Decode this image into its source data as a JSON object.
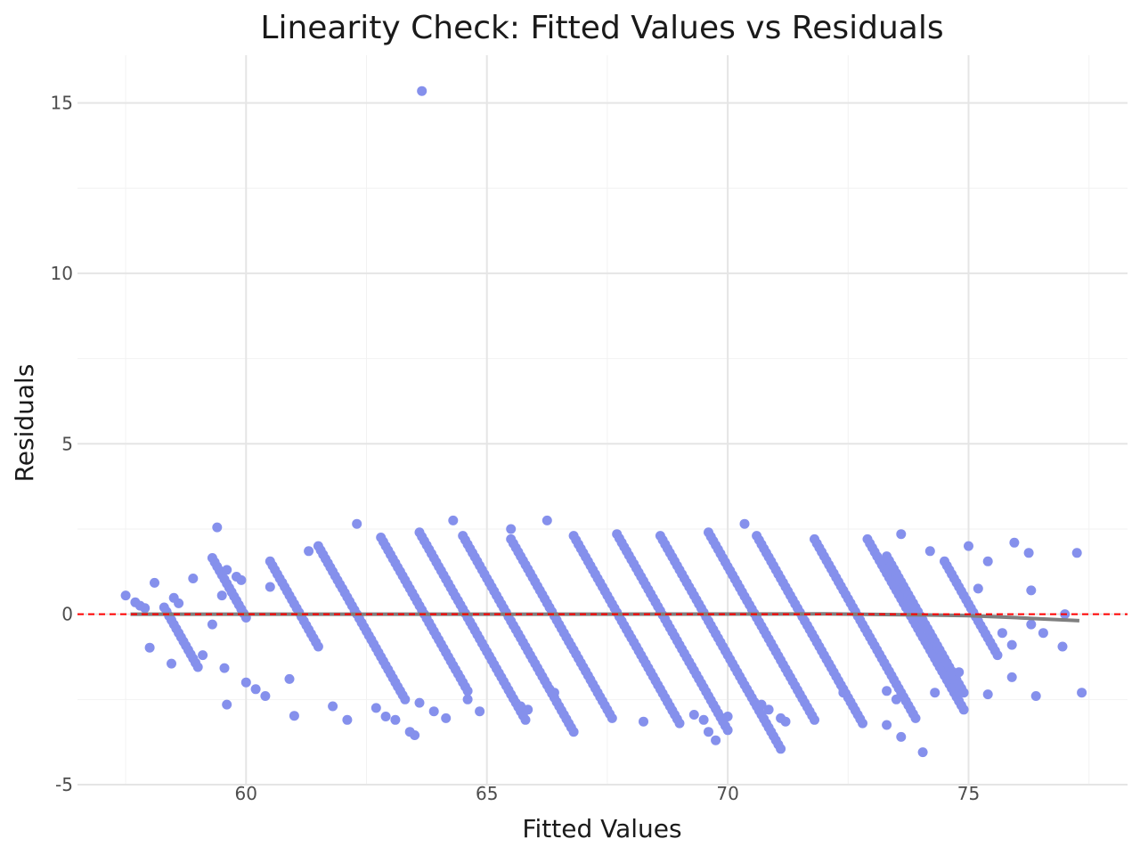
{
  "chart_data": {
    "type": "scatter",
    "title": "Linearity Check: Fitted Values vs Residuals",
    "xlabel": "Fitted Values",
    "ylabel": "Residuals",
    "xlim": [
      56.5,
      78.3
    ],
    "ylim": [
      -5.0,
      16.4
    ],
    "x_ticks": [
      60,
      65,
      70,
      75
    ],
    "x_tick_labels": [
      "60",
      "65",
      "70",
      "75"
    ],
    "y_ticks": [
      -5,
      0,
      5,
      10,
      15
    ],
    "y_tick_labels": [
      "-5",
      "0",
      "5",
      "10",
      "15"
    ],
    "grid": true,
    "point_color": "#8590ec",
    "reference_line": {
      "y": 0,
      "color": "#ff0000",
      "style": "dashed"
    },
    "trend_color": "#7f7f7f",
    "trend": [
      [
        57.6,
        0.0
      ],
      [
        66.0,
        0.0
      ],
      [
        72.0,
        0.01
      ],
      [
        74.0,
        -0.02
      ],
      [
        75.0,
        -0.04
      ],
      [
        76.0,
        -0.1
      ],
      [
        76.7,
        -0.15
      ],
      [
        77.3,
        -0.19
      ]
    ],
    "diagonal_bands": [
      {
        "a": 58.3,
        "b": 59.0,
        "y0": 0.2
      },
      {
        "a": 59.3,
        "b": 60.0,
        "y0": 1.65
      },
      {
        "a": 60.5,
        "b": 61.5,
        "y0": 1.55
      },
      {
        "a": 61.5,
        "b": 63.3,
        "y0": 2.0
      },
      {
        "a": 62.8,
        "b": 64.6,
        "y0": 2.25
      },
      {
        "a": 63.6,
        "b": 65.8,
        "y0": 2.4
      },
      {
        "a": 64.5,
        "b": 66.8,
        "y0": 2.3
      },
      {
        "a": 65.5,
        "b": 67.6,
        "y0": 2.2
      },
      {
        "a": 66.8,
        "b": 69.0,
        "y0": 2.3
      },
      {
        "a": 67.7,
        "b": 70.0,
        "y0": 2.35
      },
      {
        "a": 68.6,
        "b": 71.1,
        "y0": 2.3
      },
      {
        "a": 69.6,
        "b": 71.8,
        "y0": 2.4
      },
      {
        "a": 70.6,
        "b": 72.8,
        "y0": 2.3
      },
      {
        "a": 71.8,
        "b": 73.9,
        "y0": 2.2
      },
      {
        "a": 72.9,
        "b": 74.9,
        "y0": 2.2
      },
      {
        "a": 73.3,
        "b": 74.9,
        "y0": 1.7
      },
      {
        "a": 74.5,
        "b": 75.6,
        "y0": 1.55
      }
    ],
    "points": [
      [
        57.5,
        0.55
      ],
      [
        57.7,
        0.35
      ],
      [
        57.8,
        0.25
      ],
      [
        57.9,
        0.18
      ],
      [
        58.0,
        -0.98
      ],
      [
        58.1,
        0.92
      ],
      [
        58.5,
        0.48
      ],
      [
        58.6,
        0.32
      ],
      [
        58.45,
        -1.45
      ],
      [
        58.9,
        1.05
      ],
      [
        59.1,
        -1.2
      ],
      [
        59.3,
        -0.3
      ],
      [
        59.4,
        2.55
      ],
      [
        59.5,
        0.55
      ],
      [
        59.55,
        -1.58
      ],
      [
        59.6,
        -2.65
      ],
      [
        59.6,
        1.3
      ],
      [
        59.8,
        1.1
      ],
      [
        59.9,
        1.0
      ],
      [
        60.0,
        -2.0
      ],
      [
        60.2,
        -2.2
      ],
      [
        60.4,
        -2.4
      ],
      [
        60.5,
        0.8
      ],
      [
        60.9,
        -1.9
      ],
      [
        61.0,
        -2.98
      ],
      [
        61.3,
        1.85
      ],
      [
        61.8,
        -2.7
      ],
      [
        62.1,
        -3.1
      ],
      [
        62.3,
        2.65
      ],
      [
        62.7,
        -2.75
      ],
      [
        62.9,
        -3.0
      ],
      [
        63.1,
        -3.1
      ],
      [
        63.4,
        -3.45
      ],
      [
        63.5,
        -3.55
      ],
      [
        63.65,
        15.35
      ],
      [
        63.6,
        -2.6
      ],
      [
        63.9,
        -2.85
      ],
      [
        64.15,
        -3.05
      ],
      [
        64.3,
        2.75
      ],
      [
        64.6,
        -2.5
      ],
      [
        64.85,
        -2.85
      ],
      [
        65.5,
        2.5
      ],
      [
        65.7,
        -2.7
      ],
      [
        65.85,
        -2.8
      ],
      [
        66.25,
        2.75
      ],
      [
        66.4,
        -2.3
      ],
      [
        68.25,
        -3.15
      ],
      [
        69.3,
        -2.95
      ],
      [
        69.5,
        -3.1
      ],
      [
        69.6,
        -3.45
      ],
      [
        69.75,
        -3.7
      ],
      [
        70.0,
        -3.0
      ],
      [
        70.35,
        2.65
      ],
      [
        70.7,
        -2.65
      ],
      [
        70.85,
        -2.8
      ],
      [
        71.1,
        -3.05
      ],
      [
        71.2,
        -3.15
      ],
      [
        72.4,
        -2.3
      ],
      [
        73.3,
        -3.25
      ],
      [
        73.3,
        -2.25
      ],
      [
        73.5,
        -2.5
      ],
      [
        73.6,
        -3.6
      ],
      [
        73.6,
        2.35
      ],
      [
        74.05,
        -4.05
      ],
      [
        74.2,
        1.85
      ],
      [
        74.3,
        -2.3
      ],
      [
        74.8,
        -1.7
      ],
      [
        75.0,
        2.0
      ],
      [
        75.2,
        0.75
      ],
      [
        75.4,
        1.55
      ],
      [
        75.4,
        -2.35
      ],
      [
        75.7,
        -0.55
      ],
      [
        75.9,
        -0.9
      ],
      [
        75.9,
        -1.85
      ],
      [
        75.95,
        2.1
      ],
      [
        76.25,
        1.8
      ],
      [
        76.3,
        -0.3
      ],
      [
        76.3,
        0.7
      ],
      [
        76.4,
        -2.4
      ],
      [
        76.55,
        -0.55
      ],
      [
        76.95,
        -0.95
      ],
      [
        77.0,
        0.0
      ],
      [
        77.25,
        1.8
      ],
      [
        77.35,
        -2.3
      ]
    ]
  }
}
